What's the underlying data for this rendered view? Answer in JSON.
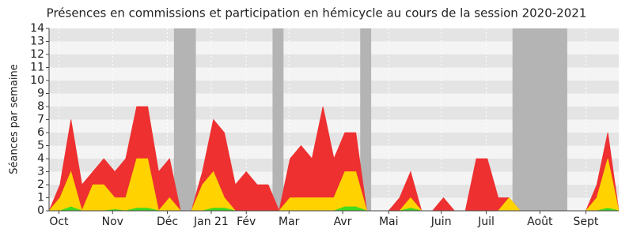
{
  "chart_data": {
    "type": "area",
    "title": "Présences en commissions et participation en hémicycle au cours de la session 2020-2021",
    "ylabel": "Séances par semaine",
    "x": [
      0,
      1,
      2,
      3,
      4,
      5,
      6,
      7,
      8,
      9,
      10,
      11,
      12,
      13,
      14,
      15,
      16,
      17,
      18,
      19,
      20,
      21,
      22,
      23,
      24,
      25,
      26,
      27,
      28,
      29,
      30,
      31,
      32,
      33,
      34,
      35,
      36,
      37,
      38,
      39,
      40,
      41,
      42,
      43,
      44,
      45,
      46,
      47,
      48,
      49,
      50,
      51,
      52
    ],
    "series": [
      {
        "color": "#ee3030",
        "values": [
          0,
          2,
          7,
          2,
          3,
          4,
          3,
          4,
          8,
          8,
          3,
          4,
          0,
          0,
          3,
          7,
          6,
          2,
          3,
          2,
          2,
          0,
          4,
          5,
          4,
          8,
          4,
          6,
          6,
          0,
          0,
          0,
          1,
          3,
          0,
          0,
          1,
          0,
          0,
          4,
          4,
          1,
          1,
          0,
          0,
          0,
          0,
          0,
          0,
          0,
          2,
          6,
          0
        ]
      },
      {
        "color": "#ffd200",
        "values": [
          0,
          1,
          3,
          0,
          2,
          2,
          1,
          1,
          4,
          4,
          0,
          1,
          0,
          0,
          2,
          3,
          1,
          0,
          0,
          0,
          0,
          0,
          1,
          1,
          1,
          1,
          1,
          3,
          3,
          0,
          0,
          0,
          0,
          1,
          0,
          0,
          0,
          0,
          0,
          0,
          0,
          0,
          1,
          0,
          0,
          0,
          0,
          0,
          0,
          0,
          1,
          4,
          0
        ]
      },
      {
        "color": "#3fdc1e",
        "values": [
          0,
          0,
          0.3,
          0,
          0,
          0,
          0.1,
          0,
          0.2,
          0.2,
          0,
          0,
          0,
          0,
          0,
          0.2,
          0.2,
          0,
          0,
          0,
          0,
          0,
          0,
          0,
          0,
          0,
          0,
          0.3,
          0.3,
          0,
          0,
          0,
          0,
          0.2,
          0,
          0,
          0,
          0,
          0,
          0,
          0,
          0,
          0,
          0,
          0,
          0,
          0,
          0,
          0,
          0,
          0,
          0.2,
          0
        ]
      }
    ],
    "vacations": [
      [
        11.4,
        13.4
      ],
      [
        20.4,
        21.4
      ],
      [
        28.4,
        29.4
      ],
      [
        42.3,
        47.3
      ]
    ],
    "xlim": [
      0,
      52
    ],
    "xticks": [
      {
        "value": 0.9,
        "label": "Oct"
      },
      {
        "value": 5.8,
        "label": "Nov"
      },
      {
        "value": 10.8,
        "label": "Déc"
      },
      {
        "value": 14.8,
        "label": "Jan 21"
      },
      {
        "value": 18,
        "label": "Fév"
      },
      {
        "value": 21.9,
        "label": "Mar"
      },
      {
        "value": 26.8,
        "label": "Avr"
      },
      {
        "value": 31,
        "label": "Mai"
      },
      {
        "value": 35.8,
        "label": "Juin"
      },
      {
        "value": 39.9,
        "label": "Juil"
      },
      {
        "value": 44.8,
        "label": "Août"
      },
      {
        "value": 49,
        "label": "Sept"
      }
    ],
    "ylim": [
      0,
      14
    ],
    "yticks": [
      0,
      1,
      2,
      3,
      4,
      5,
      6,
      7,
      8,
      9,
      10,
      11,
      12,
      13,
      14
    ],
    "grid": true
  }
}
